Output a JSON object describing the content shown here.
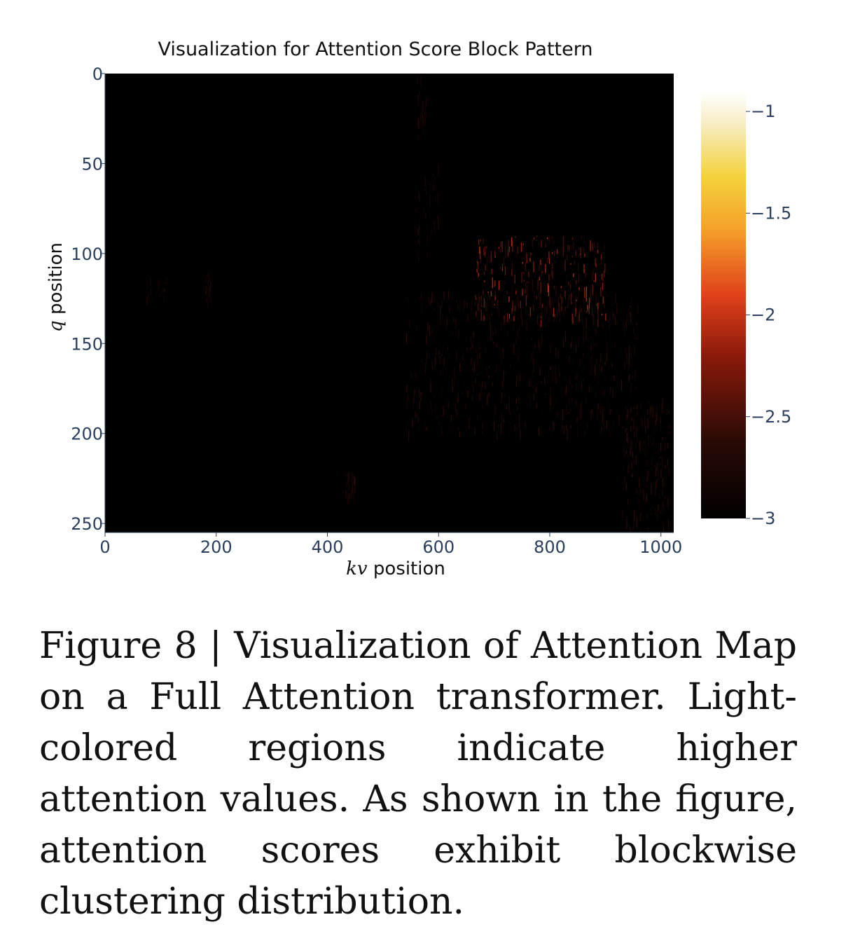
{
  "chart_data": {
    "type": "heatmap",
    "title": "Visualization for Attention Score Block Pattern",
    "xlabel_var": "kv",
    "xlabel_rest": " position",
    "ylabel_var": "q",
    "ylabel_rest": " position",
    "x_range": [
      0,
      1023
    ],
    "y_range": [
      0,
      255
    ],
    "y_reversed": true,
    "x_ticks": [
      0,
      200,
      400,
      600,
      800,
      1000
    ],
    "y_ticks": [
      0,
      50,
      100,
      150,
      200,
      250
    ],
    "colorbar": {
      "range": [
        -3,
        -0.9
      ],
      "ticks": [
        -1,
        -1.5,
        -2,
        -2.5,
        -3
      ],
      "tick_labels": [
        "−1",
        "−1.5",
        "−2",
        "−2.5",
        "−3"
      ],
      "colorscale": "hot (black → dark red → orange → yellow → white)"
    },
    "background_value": -3,
    "regions": [
      {
        "x": [
          665,
          900
        ],
        "y": [
          90,
          135
        ],
        "peak_value": -2.0
      },
      {
        "x": [
          540,
          960
        ],
        "y": [
          120,
          200
        ],
        "peak_value": -2.6
      },
      {
        "x": [
          930,
          1015
        ],
        "y": [
          180,
          255
        ],
        "peak_value": -2.6
      },
      {
        "x": [
          560,
          580
        ],
        "y": [
          0,
          35
        ],
        "peak_value": -2.7
      },
      {
        "x": [
          555,
          600
        ],
        "y": [
          50,
          100
        ],
        "peak_value": -2.7
      },
      {
        "x": [
          430,
          450
        ],
        "y": [
          220,
          235
        ],
        "peak_value": -2.6
      },
      {
        "x": [
          70,
          110
        ],
        "y": [
          110,
          125
        ],
        "peak_value": -2.7
      },
      {
        "x": [
          180,
          190
        ],
        "y": [
          110,
          125
        ],
        "peak_value": -2.6
      }
    ]
  },
  "caption": "Figure 8 | Visualization of Attention Map on a Full Attention transformer. Light-colored regions indicate higher attention values. As shown in the figure, attention scores exhibit blockwise clustering distri­bution."
}
